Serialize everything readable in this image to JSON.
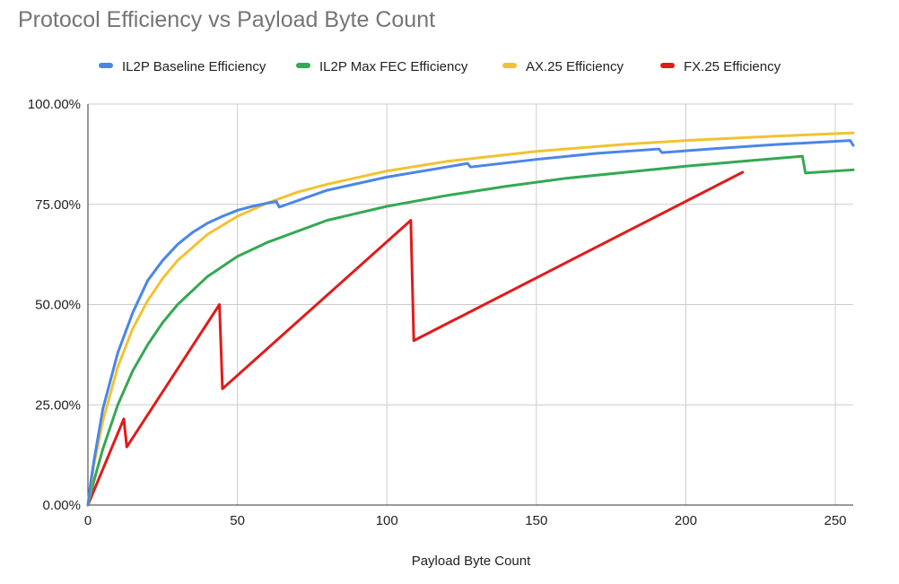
{
  "chart_data": {
    "type": "line",
    "title": "Protocol Efficiency vs Payload Byte Count",
    "xlabel": "Payload Byte Count",
    "ylabel": "",
    "xlim": [
      0,
      256
    ],
    "ylim": [
      0,
      1
    ],
    "x_ticks": [
      0,
      50,
      100,
      150,
      200,
      250
    ],
    "y_ticks": [
      0,
      0.25,
      0.5,
      0.75,
      1.0
    ],
    "y_tick_labels": [
      "0.00%",
      "25.00%",
      "50.00%",
      "75.00%",
      "100.00%"
    ],
    "grid": true,
    "legend_position": "top",
    "series": [
      {
        "name": "IL2P Baseline Efficiency",
        "color": "#4a86e8",
        "points": [
          [
            0,
            0
          ],
          [
            1,
            0.06
          ],
          [
            2,
            0.11
          ],
          [
            5,
            0.24
          ],
          [
            10,
            0.38
          ],
          [
            15,
            0.48
          ],
          [
            20,
            0.56
          ],
          [
            25,
            0.61
          ],
          [
            30,
            0.65
          ],
          [
            35,
            0.68
          ],
          [
            40,
            0.703
          ],
          [
            45,
            0.72
          ],
          [
            50,
            0.735
          ],
          [
            55,
            0.745
          ],
          [
            60,
            0.753
          ],
          [
            63,
            0.757
          ],
          [
            64,
            0.743
          ],
          [
            80,
            0.785
          ],
          [
            100,
            0.818
          ],
          [
            120,
            0.843
          ],
          [
            127,
            0.852
          ],
          [
            128,
            0.843
          ],
          [
            150,
            0.862
          ],
          [
            170,
            0.877
          ],
          [
            191,
            0.888
          ],
          [
            192,
            0.879
          ],
          [
            210,
            0.889
          ],
          [
            230,
            0.899
          ],
          [
            255,
            0.909
          ],
          [
            256,
            0.897
          ]
        ]
      },
      {
        "name": "IL2P Max FEC Efficiency",
        "color": "#34a853",
        "points": [
          [
            0,
            0
          ],
          [
            1,
            0.03
          ],
          [
            2,
            0.06
          ],
          [
            5,
            0.14
          ],
          [
            10,
            0.25
          ],
          [
            15,
            0.335
          ],
          [
            20,
            0.4
          ],
          [
            25,
            0.455
          ],
          [
            30,
            0.5
          ],
          [
            40,
            0.57
          ],
          [
            50,
            0.62
          ],
          [
            60,
            0.655
          ],
          [
            80,
            0.71
          ],
          [
            100,
            0.745
          ],
          [
            120,
            0.772
          ],
          [
            140,
            0.795
          ],
          [
            160,
            0.815
          ],
          [
            180,
            0.83
          ],
          [
            200,
            0.845
          ],
          [
            220,
            0.858
          ],
          [
            239,
            0.87
          ],
          [
            240,
            0.828
          ],
          [
            256,
            0.836
          ]
        ]
      },
      {
        "name": "AX.25 Efficiency",
        "color": "#f1c232",
        "points": [
          [
            0,
            0
          ],
          [
            1,
            0.05
          ],
          [
            2,
            0.1
          ],
          [
            5,
            0.21
          ],
          [
            10,
            0.345
          ],
          [
            15,
            0.44
          ],
          [
            20,
            0.51
          ],
          [
            25,
            0.565
          ],
          [
            30,
            0.61
          ],
          [
            40,
            0.675
          ],
          [
            50,
            0.72
          ],
          [
            60,
            0.753
          ],
          [
            70,
            0.78
          ],
          [
            80,
            0.8
          ],
          [
            100,
            0.833
          ],
          [
            120,
            0.857
          ],
          [
            150,
            0.882
          ],
          [
            180,
            0.9
          ],
          [
            200,
            0.909
          ],
          [
            230,
            0.92
          ],
          [
            256,
            0.928
          ]
        ]
      },
      {
        "name": "FX.25 Efficiency",
        "color": "#e01b1b",
        "points": [
          [
            0,
            0
          ],
          [
            12,
            0.215
          ],
          [
            13,
            0.145
          ],
          [
            44,
            0.5
          ],
          [
            45,
            0.29
          ],
          [
            108,
            0.71
          ],
          [
            109,
            0.41
          ],
          [
            219,
            0.83
          ]
        ]
      }
    ]
  }
}
